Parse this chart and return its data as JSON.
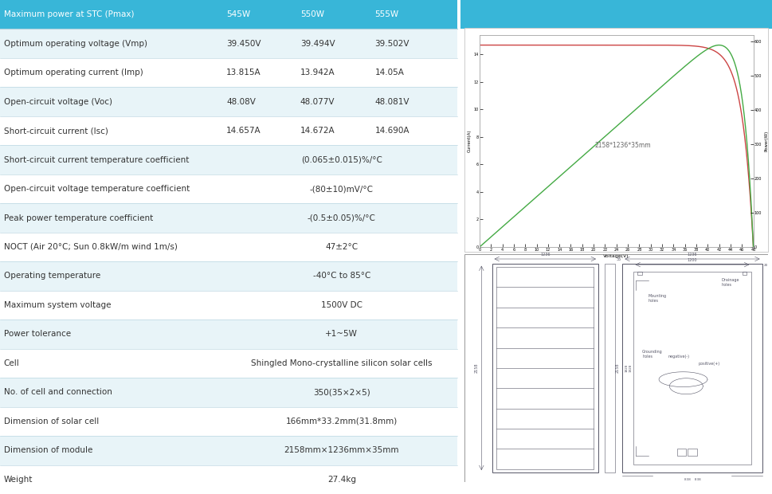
{
  "title_bg_color": "#38b6d8",
  "alt_row_color": "#e8f4f8",
  "white_color": "#ffffff",
  "border_color": "#b0d0dc",
  "text_color": "#333333",
  "header_text_color": "#ffffff",
  "curve_red": "#cc4444",
  "curve_green": "#44aa44",
  "draw_color": "#555566",
  "table_rows": [
    {
      "label": "Maximum power at STC (Pmax)",
      "vals": [
        "545W",
        "550W",
        "555W"
      ],
      "is_header": true
    },
    {
      "label": "Optimum operating voltage (Vmp)",
      "vals": [
        "39.450V",
        "39.494V",
        "39.502V"
      ],
      "is_header": false
    },
    {
      "label": "Optimum operating current (Imp)",
      "vals": [
        "13.815A",
        "13.942A",
        "14.05A"
      ],
      "is_header": false
    },
    {
      "label": "Open-circuit voltage (Voc)",
      "vals": [
        "48.08V",
        "48.077V",
        "48.081V"
      ],
      "is_header": false
    },
    {
      "label": "Short-circuit current (Isc)",
      "vals": [
        "14.657A",
        "14.672A",
        "14.690A"
      ],
      "is_header": false
    },
    {
      "label": "Short-circuit current temperature coefficient",
      "vals": [
        "(0.065±0.015)%/°C",
        "",
        ""
      ],
      "is_header": false
    },
    {
      "label": "Open-circuit voltage temperature coefficient",
      "vals": [
        "-(80±10)mV/°C",
        "",
        ""
      ],
      "is_header": false
    },
    {
      "label": "Peak power temperature coefficient",
      "vals": [
        "-(0.5±0.05)%/°C",
        "",
        ""
      ],
      "is_header": false
    },
    {
      "label": "NOCT (Air 20°C; Sun 0.8kW/m wind 1m/s)",
      "vals": [
        "47±2°C",
        "",
        ""
      ],
      "is_header": false
    },
    {
      "label": "Operating temperature",
      "vals": [
        "-40°C to 85°C",
        "",
        ""
      ],
      "is_header": false
    },
    {
      "label": "Maximum system voltage",
      "vals": [
        "1500V DC",
        "",
        ""
      ],
      "is_header": false
    },
    {
      "label": "Power tolerance",
      "vals": [
        "+1~5W",
        "",
        ""
      ],
      "is_header": false
    },
    {
      "label": "Cell",
      "vals": [
        "Shingled Mono-crystalline silicon solar cells",
        "",
        ""
      ],
      "is_header": false
    },
    {
      "label": "No. of cell and connection",
      "vals": [
        "350(35×2×5)",
        "",
        ""
      ],
      "is_header": false
    },
    {
      "label": "Dimension of solar cell",
      "vals": [
        "166mm*33.2mm(31.8mm)",
        "",
        ""
      ],
      "is_header": false
    },
    {
      "label": "Dimension of module",
      "vals": [
        "2158mm×1236mm×35mm",
        "",
        ""
      ],
      "is_header": false
    },
    {
      "label": "Weight",
      "vals": [
        "27.4kg",
        "",
        ""
      ],
      "is_header": false
    }
  ],
  "Voc": 48.0,
  "Isc": 14.67,
  "Vmp": 39.5,
  "Imp": 13.9,
  "curve_annotation": "2158*1236*35mm",
  "xlabel": "Voltage(V)",
  "ylabel_left": "Current(A)",
  "ylabel_right": "Power(W)"
}
